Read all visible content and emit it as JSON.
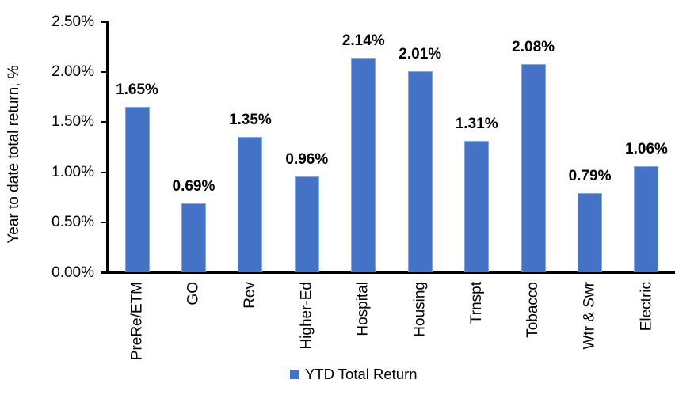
{
  "chart_data": {
    "type": "bar",
    "title": "",
    "ylabel": "Year to date total return, %",
    "xlabel": "",
    "categories": [
      "PreRe/ETM",
      "GO",
      "Rev",
      "Higher-Ed",
      "Hospital",
      "Housing",
      "Trnspt",
      "Tobacco",
      "Wtr & Swr",
      "Electric"
    ],
    "values": [
      1.65,
      0.69,
      1.35,
      0.96,
      2.14,
      2.01,
      1.31,
      2.08,
      0.79,
      1.06
    ],
    "value_labels": [
      "1.65%",
      "0.69%",
      "1.35%",
      "0.96%",
      "2.14%",
      "2.01%",
      "1.31%",
      "2.08%",
      "0.79%",
      "1.06%"
    ],
    "ylim": [
      0,
      2.5
    ],
    "ytick_values": [
      0,
      0.5,
      1,
      1.5,
      2,
      2.5
    ],
    "ytick_labels": [
      "0.00%",
      "0.50%",
      "1.00%",
      "1.50%",
      "2.00%",
      "2.50%"
    ],
    "grid": false,
    "legend_position": "bottom",
    "legend": [
      {
        "name": "YTD Total Return",
        "color": "#4472C4"
      }
    ],
    "colors": {
      "bar_fill": "#4472C4",
      "bar_border": "#84A7DC",
      "axis": "#000000",
      "text": "#000000",
      "background": "#FFFFFF"
    }
  }
}
